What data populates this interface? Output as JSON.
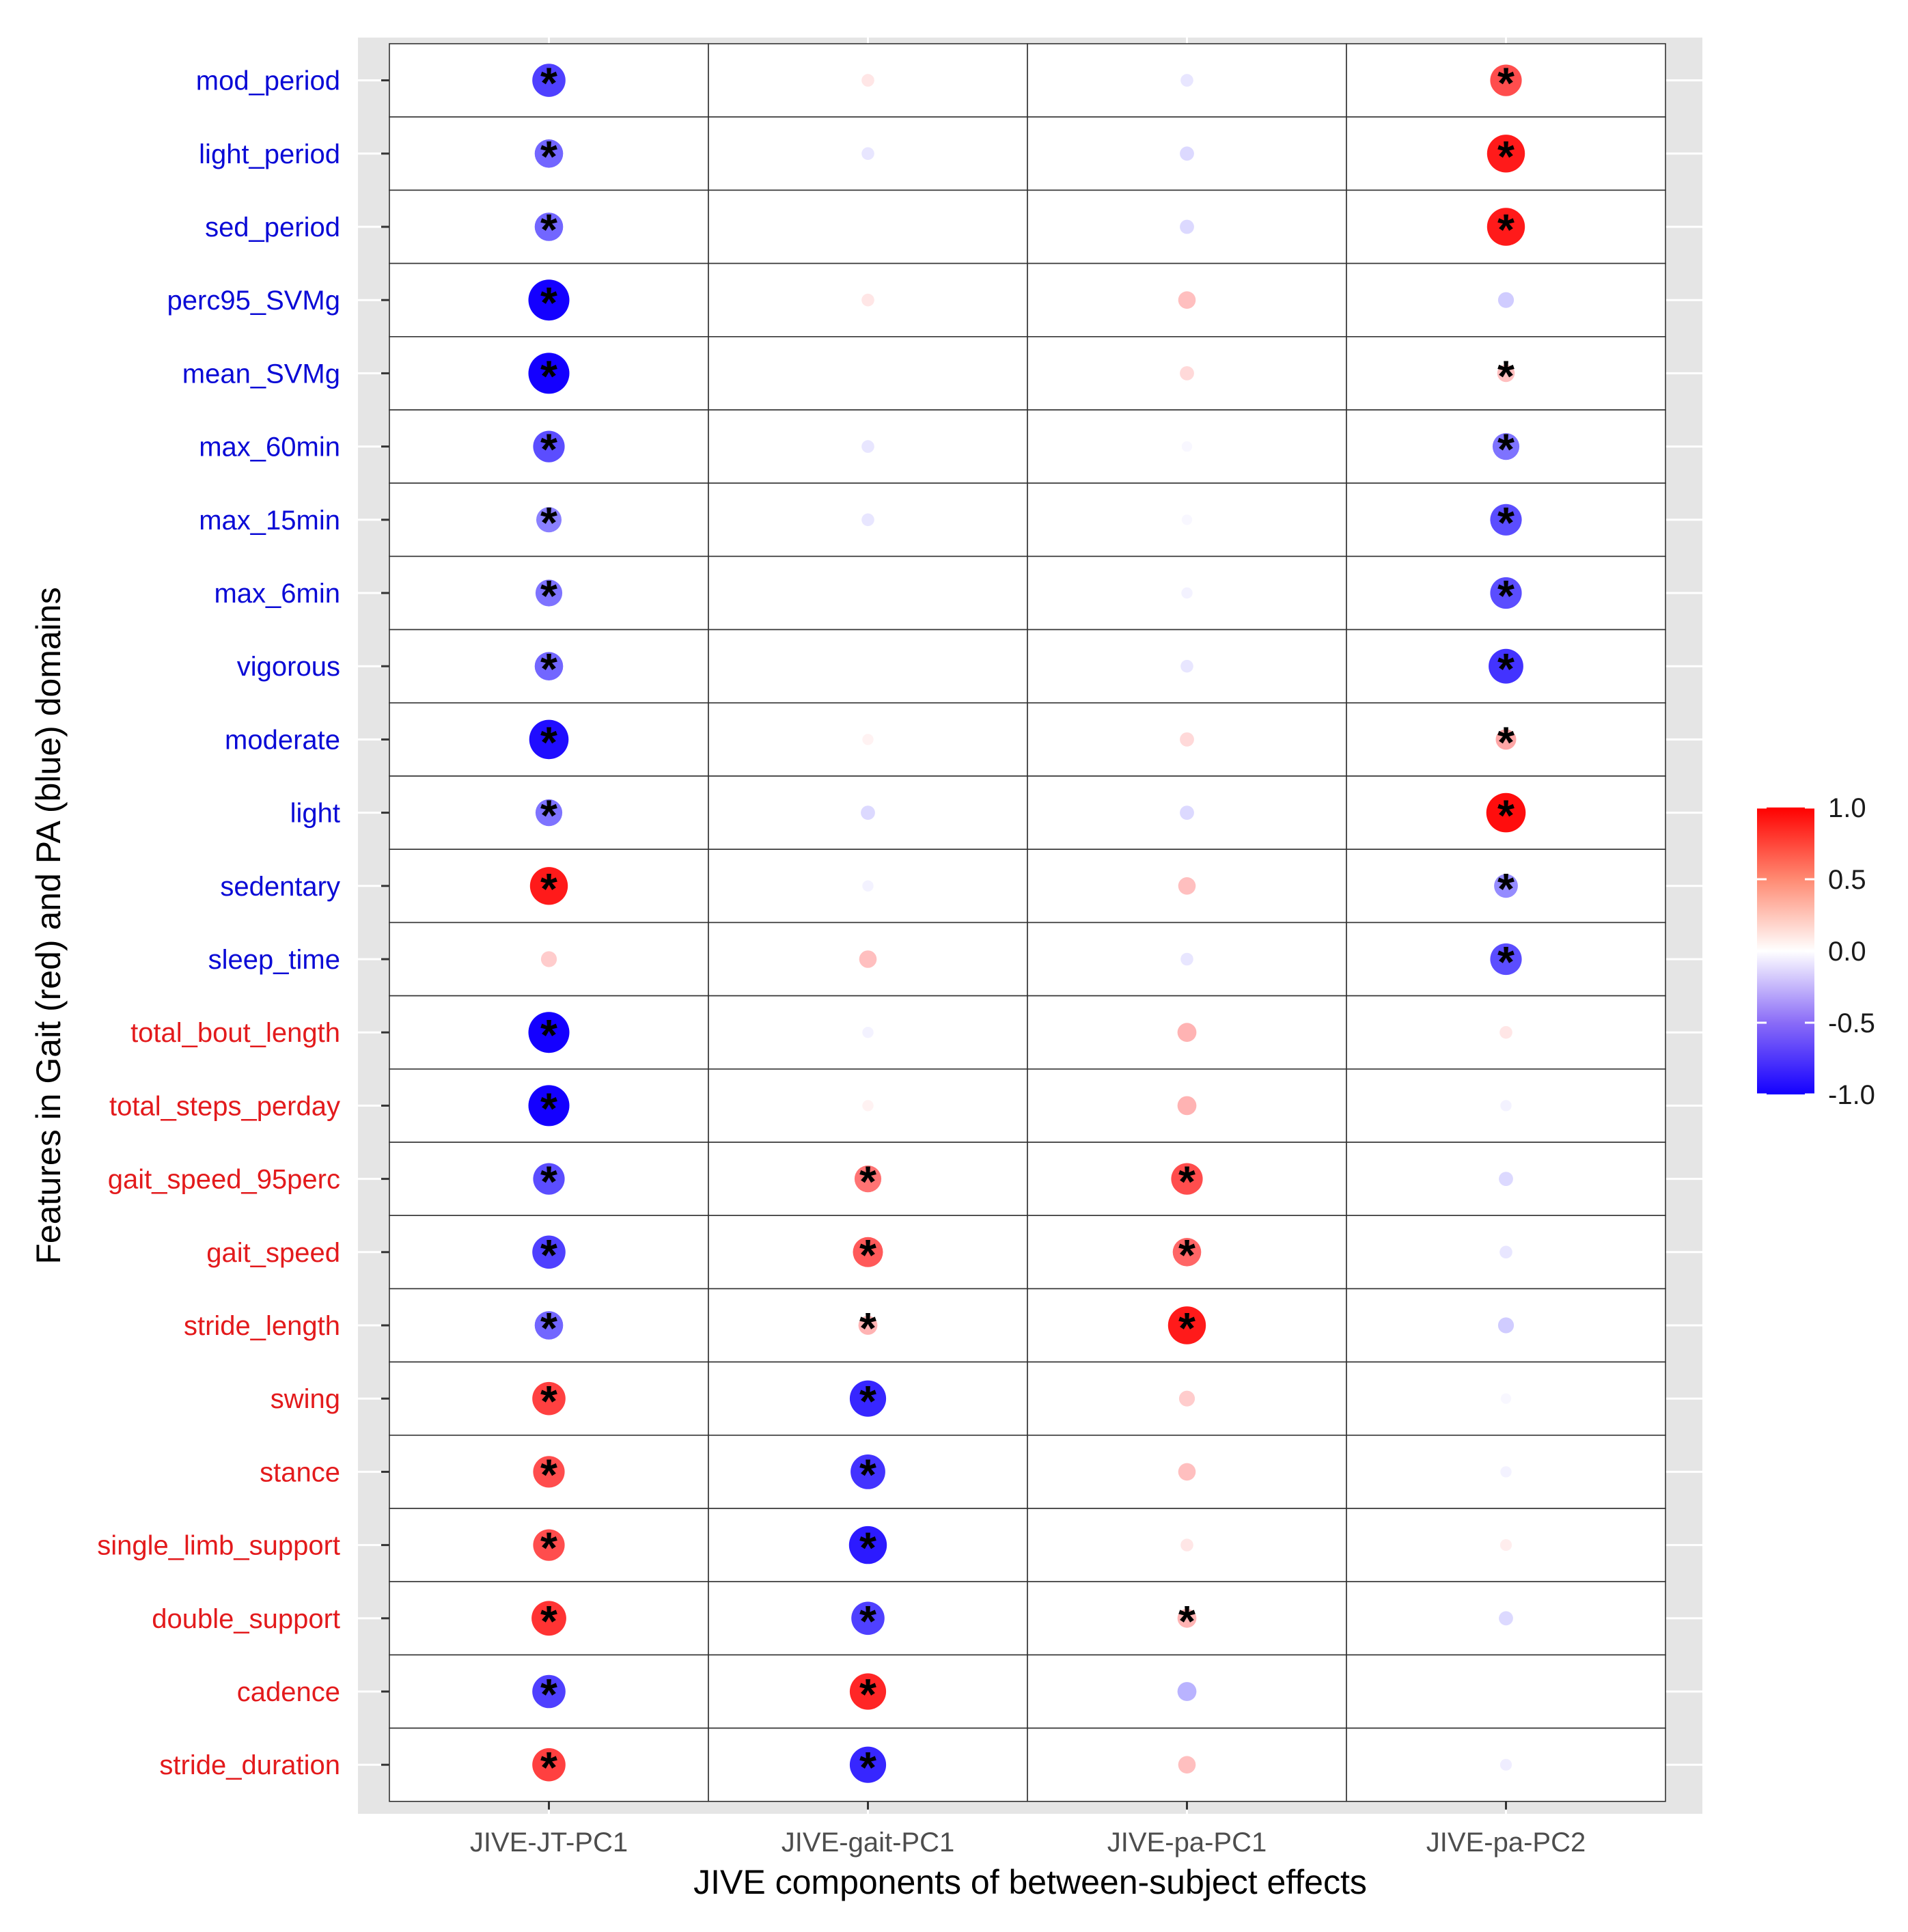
{
  "chart_data": {
    "type": "heatmap",
    "subtype": "correlation-dot-matrix",
    "xlabel": "JIVE components of between-subject effects",
    "ylabel": "Features in Gait (red) and PA (blue) domains",
    "columns": [
      "JIVE-JT-PC1",
      "JIVE-gait-PC1",
      "JIVE-pa-PC1",
      "JIVE-pa-PC2"
    ],
    "rows": [
      {
        "label": "mod_period",
        "domain": "PA",
        "values": [
          -0.75,
          0.1,
          -0.1,
          0.7
        ],
        "sig": [
          true,
          false,
          false,
          true
        ]
      },
      {
        "label": "light_period",
        "domain": "PA",
        "values": [
          -0.6,
          -0.1,
          -0.15,
          0.9
        ],
        "sig": [
          true,
          false,
          false,
          true
        ]
      },
      {
        "label": "sed_period",
        "domain": "PA",
        "values": [
          -0.6,
          0.0,
          -0.15,
          0.9
        ],
        "sig": [
          true,
          false,
          false,
          true
        ]
      },
      {
        "label": "perc95_SVMg",
        "domain": "PA",
        "values": [
          -1.0,
          0.1,
          0.25,
          -0.2
        ],
        "sig": [
          true,
          false,
          false,
          false
        ]
      },
      {
        "label": "mean_SVMg",
        "domain": "PA",
        "values": [
          -1.0,
          0.0,
          0.15,
          0.25
        ],
        "sig": [
          true,
          false,
          false,
          true
        ]
      },
      {
        "label": "max_60min",
        "domain": "PA",
        "values": [
          -0.7,
          -0.1,
          -0.03,
          -0.55
        ],
        "sig": [
          true,
          false,
          false,
          true
        ]
      },
      {
        "label": "max_15min",
        "domain": "PA",
        "values": [
          -0.5,
          -0.1,
          -0.03,
          -0.7
        ],
        "sig": [
          true,
          false,
          false,
          true
        ]
      },
      {
        "label": "max_6min",
        "domain": "PA",
        "values": [
          -0.55,
          0.0,
          -0.05,
          -0.7
        ],
        "sig": [
          true,
          false,
          false,
          true
        ]
      },
      {
        "label": "vigorous",
        "domain": "PA",
        "values": [
          -0.6,
          0.0,
          -0.1,
          -0.8
        ],
        "sig": [
          true,
          false,
          false,
          true
        ]
      },
      {
        "label": "moderate",
        "domain": "PA",
        "values": [
          -0.95,
          0.05,
          0.15,
          0.35
        ],
        "sig": [
          true,
          false,
          false,
          true
        ]
      },
      {
        "label": "light",
        "domain": "PA",
        "values": [
          -0.55,
          -0.15,
          -0.15,
          0.95
        ],
        "sig": [
          true,
          false,
          false,
          true
        ]
      },
      {
        "label": "sedentary",
        "domain": "PA",
        "values": [
          0.9,
          -0.05,
          0.25,
          -0.45
        ],
        "sig": [
          true,
          false,
          false,
          true
        ]
      },
      {
        "label": "sleep_time",
        "domain": "PA",
        "values": [
          0.2,
          0.25,
          -0.1,
          -0.7
        ],
        "sig": [
          false,
          false,
          false,
          true
        ]
      },
      {
        "label": "total_bout_length",
        "domain": "Gait",
        "values": [
          -1.0,
          -0.05,
          0.3,
          0.1
        ],
        "sig": [
          true,
          false,
          false,
          false
        ]
      },
      {
        "label": "total_steps_perday",
        "domain": "Gait",
        "values": [
          -1.0,
          0.05,
          0.3,
          -0.05
        ],
        "sig": [
          true,
          false,
          false,
          false
        ]
      },
      {
        "label": "gait_speed_95perc",
        "domain": "Gait",
        "values": [
          -0.7,
          0.55,
          0.7,
          -0.15
        ],
        "sig": [
          true,
          true,
          true,
          false
        ]
      },
      {
        "label": "gait_speed",
        "domain": "Gait",
        "values": [
          -0.75,
          0.65,
          0.6,
          -0.1
        ],
        "sig": [
          true,
          true,
          true,
          false
        ]
      },
      {
        "label": "stride_length",
        "domain": "Gait",
        "values": [
          -0.6,
          0.3,
          0.9,
          -0.2
        ],
        "sig": [
          true,
          true,
          true,
          false
        ]
      },
      {
        "label": "swing",
        "domain": "Gait",
        "values": [
          0.75,
          -0.85,
          0.2,
          -0.03
        ],
        "sig": [
          true,
          true,
          false,
          false
        ]
      },
      {
        "label": "stance",
        "domain": "Gait",
        "values": [
          0.7,
          -0.8,
          0.25,
          -0.05
        ],
        "sig": [
          true,
          true,
          false,
          false
        ]
      },
      {
        "label": "single_limb_support",
        "domain": "Gait",
        "values": [
          0.7,
          -0.9,
          0.1,
          0.07
        ],
        "sig": [
          true,
          true,
          false,
          false
        ]
      },
      {
        "label": "double_support",
        "domain": "Gait",
        "values": [
          0.8,
          -0.75,
          0.3,
          -0.15
        ],
        "sig": [
          true,
          true,
          true,
          false
        ]
      },
      {
        "label": "cadence",
        "domain": "Gait",
        "values": [
          -0.75,
          0.85,
          -0.3,
          null
        ],
        "sig": [
          true,
          true,
          false,
          false
        ]
      },
      {
        "label": "stride_duration",
        "domain": "Gait",
        "values": [
          0.75,
          -0.85,
          0.25,
          -0.07
        ],
        "sig": [
          true,
          true,
          false,
          false
        ]
      }
    ],
    "legend": {
      "ticks": [
        "1.0",
        "0.5",
        "0.0",
        "-0.5",
        "-1.0"
      ],
      "range": [
        -1,
        1
      ],
      "colors": {
        "low": "#1400ff",
        "mid": "#ffffff",
        "high": "#ff0000"
      },
      "position": "right"
    },
    "domain_colors": {
      "Gait": "#e31a1c",
      "PA": "#0a0ad6"
    },
    "significance_marker": "*"
  }
}
